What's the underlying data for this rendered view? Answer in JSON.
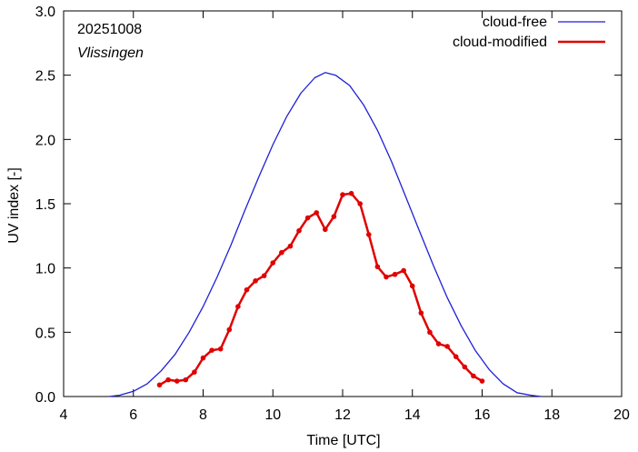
{
  "chart_data": {
    "type": "line",
    "xlabel": "Time  [UTC]",
    "ylabel": "UV index  [-]",
    "xlim": [
      4,
      20
    ],
    "ylim": [
      0,
      3.0
    ],
    "x_ticks": [
      "4",
      "6",
      "8",
      "10",
      "12",
      "14",
      "16",
      "18",
      "20"
    ],
    "y_ticks": [
      "0.0",
      "0.5",
      "1.0",
      "1.5",
      "2.0",
      "2.5",
      "3.0"
    ],
    "annotations": [
      "20251008",
      "Vlissingen"
    ],
    "legend_position": "top-right",
    "grid": false,
    "series": [
      {
        "name": "cloud-free",
        "color": "#1f1fd6",
        "markers": false,
        "x": [
          5.3,
          5.6,
          6.0,
          6.4,
          6.8,
          7.2,
          7.6,
          8.0,
          8.4,
          8.8,
          9.2,
          9.6,
          10.0,
          10.4,
          10.8,
          11.2,
          11.5,
          11.8,
          12.2,
          12.6,
          13.0,
          13.4,
          13.8,
          14.2,
          14.6,
          15.0,
          15.4,
          15.8,
          16.2,
          16.6,
          17.0,
          17.4,
          17.7
        ],
        "y": [
          0.0,
          0.01,
          0.04,
          0.1,
          0.2,
          0.33,
          0.5,
          0.7,
          0.93,
          1.18,
          1.45,
          1.71,
          1.96,
          2.18,
          2.36,
          2.48,
          2.52,
          2.5,
          2.42,
          2.27,
          2.07,
          1.83,
          1.56,
          1.29,
          1.02,
          0.77,
          0.55,
          0.36,
          0.21,
          0.1,
          0.03,
          0.01,
          0.0
        ]
      },
      {
        "name": "cloud-modified",
        "color": "#e00000",
        "markers": true,
        "x": [
          6.75,
          7.0,
          7.25,
          7.5,
          7.75,
          8.0,
          8.25,
          8.5,
          8.75,
          9.0,
          9.25,
          9.5,
          9.75,
          10.0,
          10.25,
          10.5,
          10.75,
          11.0,
          11.25,
          11.5,
          11.75,
          12.0,
          12.25,
          12.5,
          12.75,
          13.0,
          13.25,
          13.5,
          13.75,
          14.0,
          14.25,
          14.5,
          14.75,
          15.0,
          15.25,
          15.5,
          15.75,
          16.0
        ],
        "y": [
          0.09,
          0.13,
          0.12,
          0.13,
          0.19,
          0.3,
          0.36,
          0.37,
          0.52,
          0.7,
          0.83,
          0.9,
          0.94,
          1.04,
          1.12,
          1.17,
          1.29,
          1.39,
          1.43,
          1.3,
          1.4,
          1.57,
          1.58,
          1.5,
          1.26,
          1.01,
          0.93,
          0.95,
          0.98,
          0.86,
          0.65,
          0.5,
          0.41,
          0.39,
          0.31,
          0.23,
          0.16,
          0.12
        ]
      }
    ]
  }
}
